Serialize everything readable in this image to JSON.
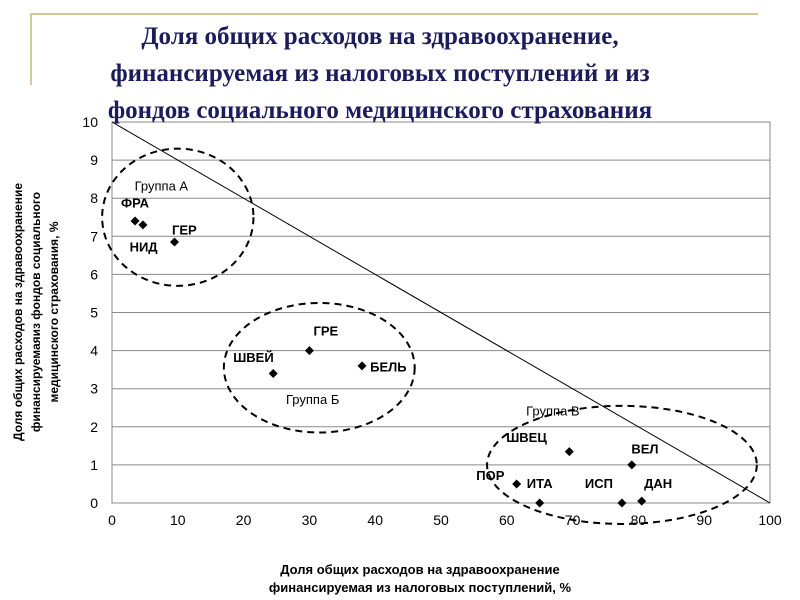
{
  "slide": {
    "title_line1": "Доля общих расходов на здравоохранение,",
    "title_line2": "финансируемая из налоговых поступлений и из",
    "title_line3": "фондов социального медицинского страхования",
    "accent_color": "#d4c89a",
    "title_color": "#1c1c5a"
  },
  "chart_data": {
    "type": "scatter",
    "title": "",
    "xlabel_line1": "Доля общих расходов на здравоохранение",
    "xlabel_line2": "финансируемая из налоговых поступлений, %",
    "ylabel_line1": "Доля общих расходов на здравоохранение",
    "ylabel_line2": "финансируемаяиз фондов социального",
    "ylabel_line3": "медицинского страхования, %",
    "xlim": [
      0,
      100
    ],
    "ylim": [
      0,
      10
    ],
    "x_ticks": [
      "0",
      "10",
      "20",
      "30",
      "40",
      "50",
      "60",
      "70",
      "80",
      "90",
      "100"
    ],
    "y_ticks": [
      "0",
      "1",
      "2",
      "3",
      "4",
      "5",
      "6",
      "7",
      "8",
      "9",
      "10"
    ],
    "grid": "horizontal",
    "diagonal_line": {
      "from": [
        0,
        10
      ],
      "to": [
        100,
        0
      ]
    },
    "points": [
      {
        "label": "ФРА",
        "x": 3.5,
        "y": 7.4
      },
      {
        "label": "",
        "x": 4.7,
        "y": 7.3
      },
      {
        "label": "ГЕР",
        "x": 9.5,
        "y": 6.85
      },
      {
        "label": "НИД",
        "x": null,
        "y": null
      },
      {
        "label": "ГРЕ",
        "x": 30,
        "y": 4.0
      },
      {
        "label": "ШВЕЙ",
        "x": 24.5,
        "y": 3.4
      },
      {
        "label": "БЕЛЬ",
        "x": 38,
        "y": 3.6
      },
      {
        "label": "ШВЕЦ",
        "x": 69.5,
        "y": 1.35
      },
      {
        "label": "ВЕЛ",
        "x": 79,
        "y": 1.0
      },
      {
        "label": "ПОР",
        "x": 61.5,
        "y": 0.5
      },
      {
        "label": "ИТА",
        "x": 65,
        "y": 0.0
      },
      {
        "label": "ИСП",
        "x": 77.5,
        "y": 0.0
      },
      {
        "label": "ДАН",
        "x": 80.5,
        "y": 0.05
      }
    ],
    "point_labels": [
      {
        "text": "ФРА",
        "x": 3.5,
        "y": 7.75
      },
      {
        "text": "ГЕР",
        "x": 11,
        "y": 7.05
      },
      {
        "text": "НИД",
        "x": 4.8,
        "y": 6.6
      },
      {
        "text": "ГРЕ",
        "x": 32.5,
        "y": 4.4
      },
      {
        "text": "ШВЕЙ",
        "x": 21.5,
        "y": 3.7
      },
      {
        "text": "БЕЛЬ",
        "x": 42,
        "y": 3.45
      },
      {
        "text": "ШВЕЦ",
        "x": 63,
        "y": 1.6
      },
      {
        "text": "ВЕЛ",
        "x": 81,
        "y": 1.3
      },
      {
        "text": "ПОР",
        "x": 57.5,
        "y": 0.6
      },
      {
        "text": "ИТА",
        "x": 65,
        "y": 0.4
      },
      {
        "text": "ИСП",
        "x": 74,
        "y": 0.4
      },
      {
        "text": "ДАН",
        "x": 83,
        "y": 0.4
      }
    ],
    "groups": [
      {
        "label": "Группа А",
        "cx": 10,
        "cy": 7.5,
        "rx": 11.5,
        "ry": 1.8,
        "label_x": 7.5,
        "label_y": 8.2
      },
      {
        "label": "Группа Б",
        "cx": 31.5,
        "cy": 3.55,
        "rx": 14.5,
        "ry": 1.7,
        "label_x": 30.5,
        "label_y": 2.6
      },
      {
        "label": "Группа В",
        "cx": 77.5,
        "cy": 1.0,
        "rx": 20.5,
        "ry": 1.55,
        "label_x": 67,
        "label_y": 2.3
      }
    ]
  }
}
